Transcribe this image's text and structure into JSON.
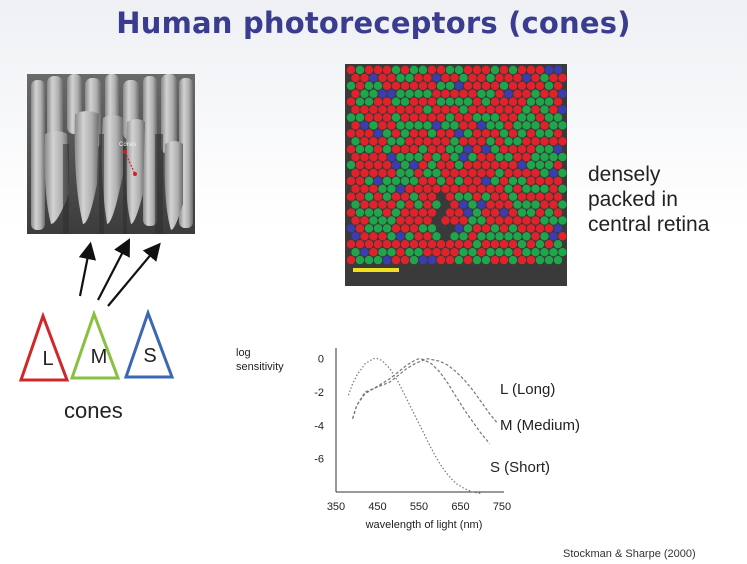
{
  "title": "Human photoreceptors (cones)",
  "cone_types": [
    {
      "letter": "L",
      "color": "#d0282a"
    },
    {
      "letter": "M",
      "color": "#88c040"
    },
    {
      "letter": "S",
      "color": "#3b68b4"
    }
  ],
  "cones_caption": "cones",
  "micrograph_label": "Cones",
  "mosaic_caption": "densely packed in central retina",
  "mosaic_caption_lines": [
    "densely",
    "packed in",
    "central retina"
  ],
  "mosaic_colors": {
    "red": "#e2222a",
    "green": "#1fa64a",
    "blue": "#3a3cb0",
    "scale_bar": "#f0e020"
  },
  "citation": "Stockman & Sharpe (2000)",
  "chart_data": {
    "type": "line",
    "title": "",
    "xlabel": "wavelength of light (nm)",
    "ylabel": "log sensitivity",
    "xlim": [
      350,
      750
    ],
    "ylim": [
      -8,
      0.4
    ],
    "xticks": [
      350,
      450,
      550,
      650,
      750
    ],
    "yticks": [
      0,
      -2,
      -4,
      -6
    ],
    "grid": false,
    "series": [
      {
        "name": "L (Long)",
        "style": "dashed",
        "x": [
          390,
          400,
          420,
          440,
          460,
          480,
          500,
          520,
          540,
          560,
          570,
          580,
          600,
          620,
          640,
          660,
          680,
          700,
          720,
          740
        ],
        "y": [
          -3.6,
          -2.8,
          -2.0,
          -1.8,
          -1.6,
          -1.4,
          -1.0,
          -0.6,
          -0.3,
          -0.1,
          0.0,
          -0.05,
          -0.15,
          -0.4,
          -0.8,
          -1.3,
          -1.9,
          -2.6,
          -3.3,
          -3.9
        ]
      },
      {
        "name": "M (Medium)",
        "style": "dashed",
        "x": [
          390,
          400,
          420,
          440,
          460,
          480,
          500,
          520,
          540,
          550,
          560,
          580,
          600,
          620,
          640,
          660,
          680,
          700,
          720
        ],
        "y": [
          -3.6,
          -2.8,
          -2.1,
          -1.8,
          -1.5,
          -1.2,
          -0.8,
          -0.4,
          -0.1,
          0.0,
          -0.05,
          -0.3,
          -0.8,
          -1.5,
          -2.3,
          -3.1,
          -3.8,
          -4.5,
          -5.1
        ]
      },
      {
        "name": "S (Short)",
        "style": "dotted",
        "x": [
          380,
          390,
          400,
          420,
          440,
          450,
          460,
          480,
          500,
          520,
          540,
          560,
          580,
          600,
          620,
          640,
          660,
          680,
          700
        ],
        "y": [
          -2.2,
          -1.5,
          -1.0,
          -0.3,
          0.0,
          0.0,
          -0.1,
          -0.6,
          -1.4,
          -2.4,
          -3.4,
          -4.4,
          -5.4,
          -6.3,
          -7.0,
          -7.5,
          -7.8,
          -8.0,
          -8.1
        ]
      }
    ]
  }
}
